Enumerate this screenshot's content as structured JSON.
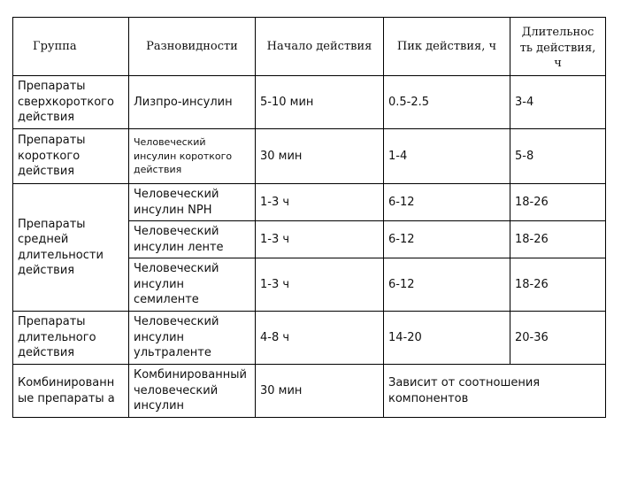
{
  "table": {
    "headers": {
      "group": "Группа",
      "kind": "Разновидности",
      "onset": "Начало действия",
      "peak": "Пик действия, ч",
      "duration": "Длительнос ть действия, ч"
    },
    "rows": [
      {
        "group": "Препараты сверхкороткого действия",
        "kind": "Лизпро-инсулин",
        "onset": "5-10 мин",
        "peak": "0.5-2.5",
        "duration": "3-4"
      },
      {
        "group": "Препараты короткого действия",
        "kind": "Человеческий инсулин короткого действия",
        "onset": "30 мин",
        "peak": "1-4",
        "duration": "5-8"
      },
      {
        "group": "Препараты средней длительности действия",
        "kind": "Человеческий инсулин NPH",
        "onset": "1-3 ч",
        "peak": "6-12",
        "duration": "18-26"
      },
      {
        "kind": "Человеческий инсулин ленте",
        "onset": "1-3 ч",
        "peak": "6-12",
        "duration": "18-26"
      },
      {
        "kind": "Человеческий инсулин семиленте",
        "onset": "1-3 ч",
        "peak": "6-12",
        "duration": "18-26"
      },
      {
        "group": "Препараты длительного действия",
        "kind": "Человеческий инсулин ультраленте",
        "onset": "4-8 ч",
        "peak": "14-20",
        "duration": "20-36"
      },
      {
        "group": "Комбинированн ые препараты а",
        "kind": "Комбинированный человеческий инсулин",
        "onset": "30 мин",
        "peak_duration": "Зависит от соотношения компонентов"
      }
    ]
  }
}
